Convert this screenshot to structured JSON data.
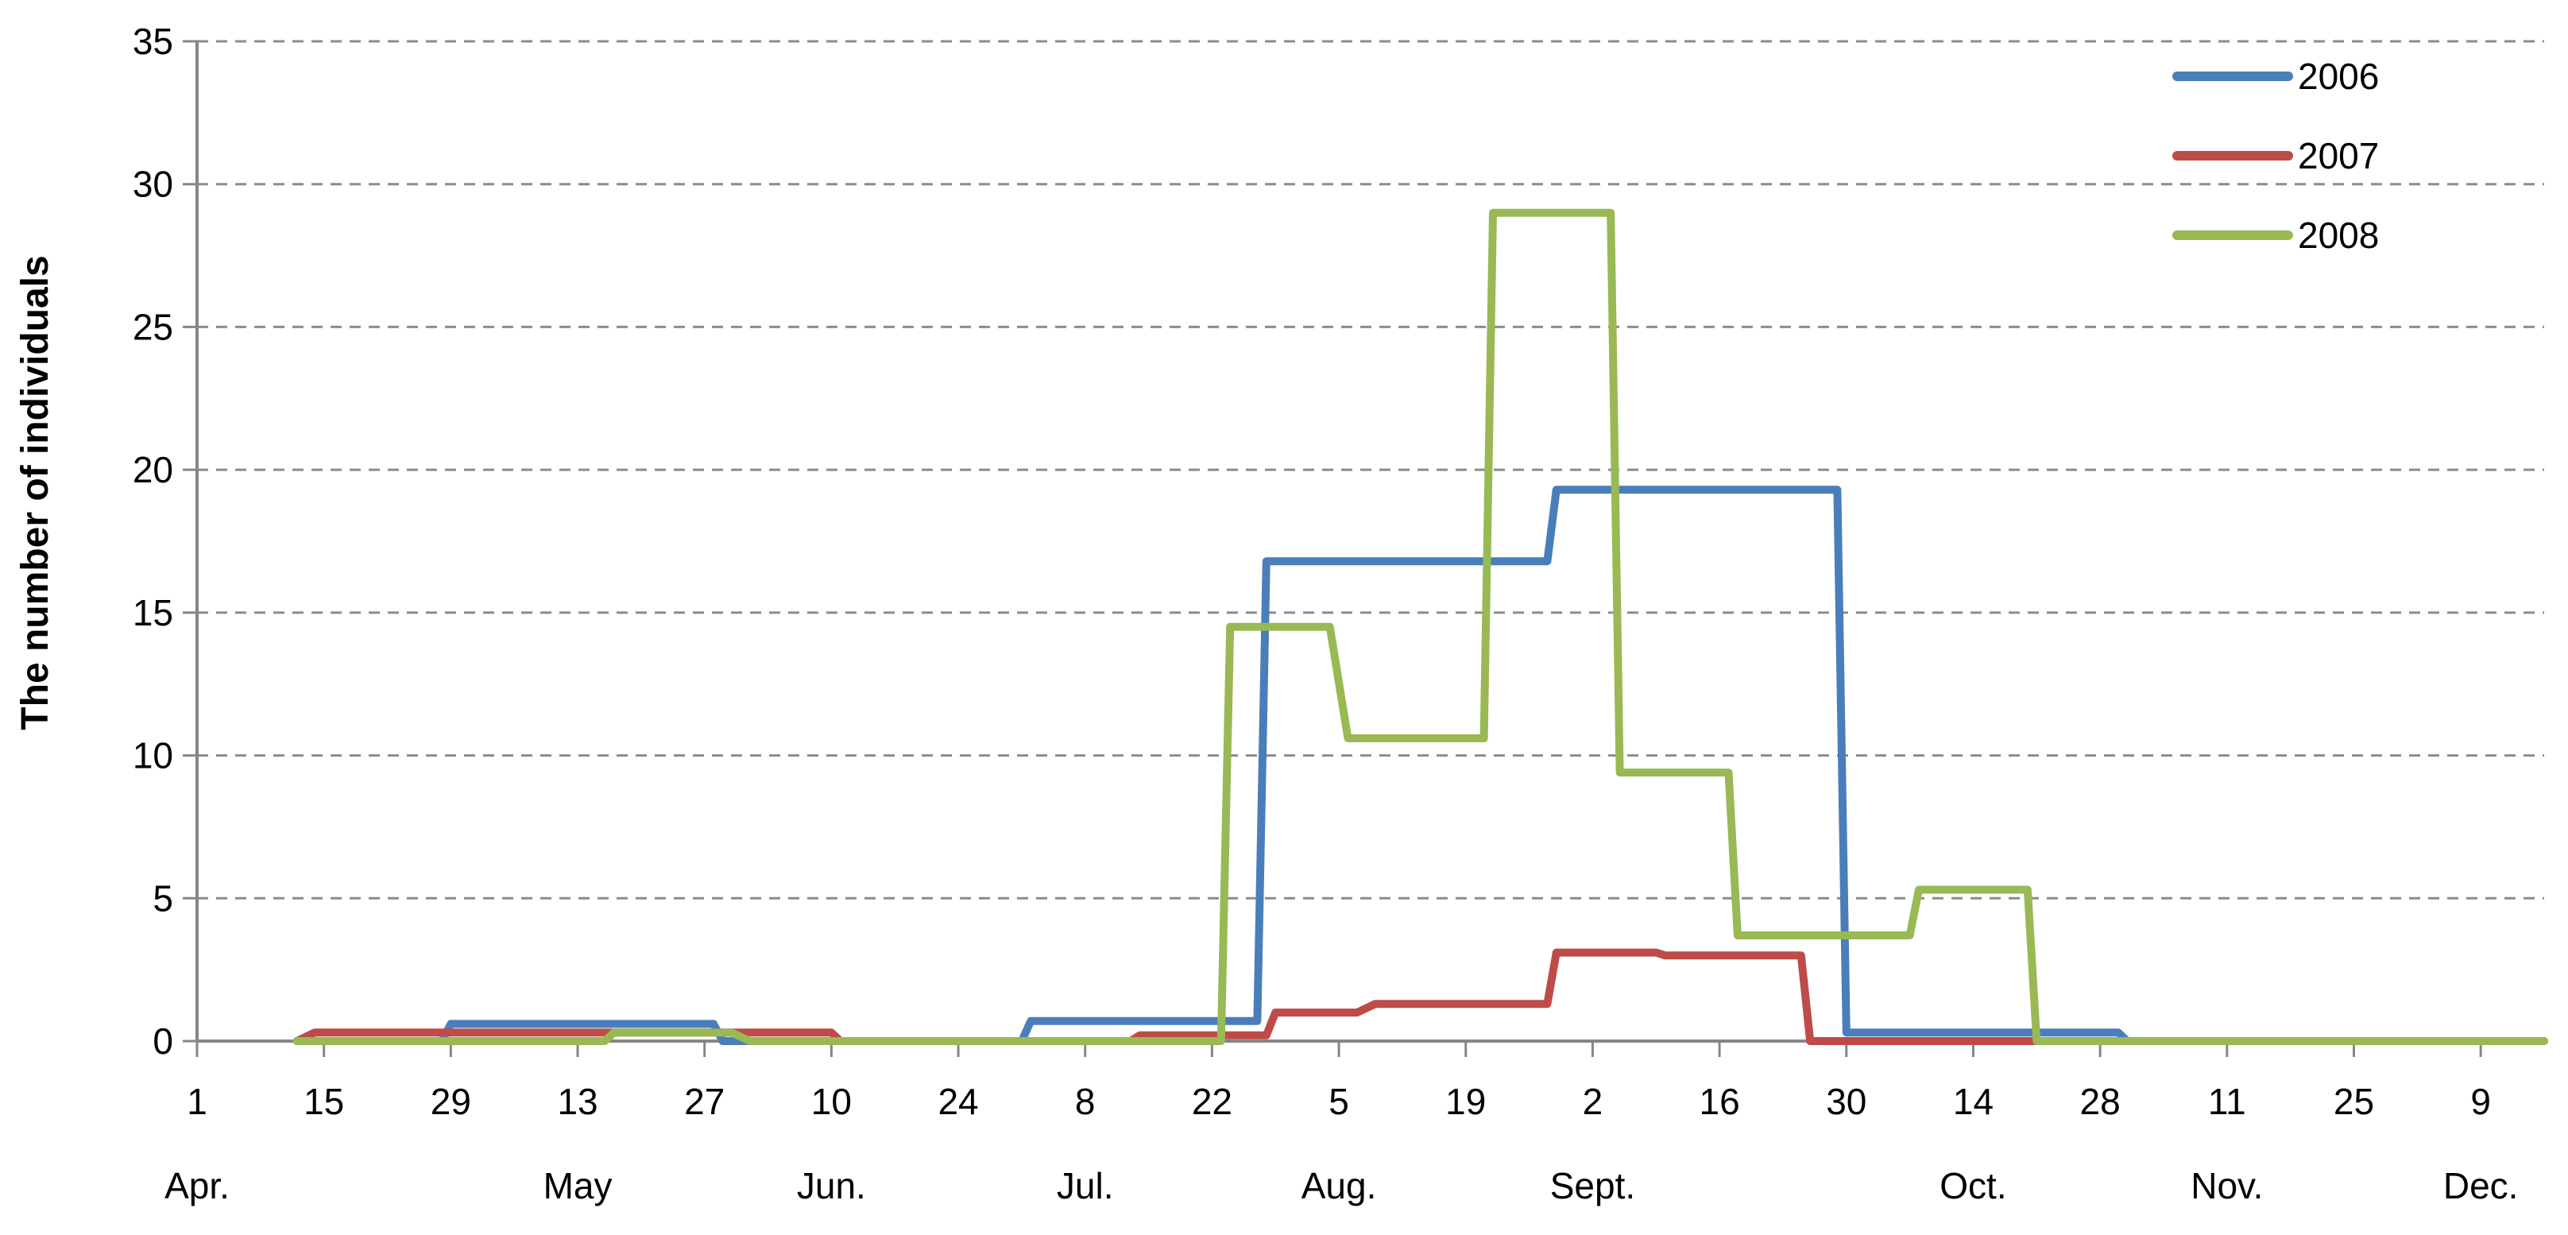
{
  "chart_data": {
    "type": "line",
    "title": "",
    "xlabel": "",
    "ylabel": "The number of individuals",
    "ylim": [
      0,
      35
    ],
    "yticks": [
      0,
      5,
      10,
      15,
      20,
      25,
      30,
      35
    ],
    "y_grid": true,
    "legend_position": "top-right",
    "x_axis": {
      "range": [
        "2006-04-01",
        "2006-12-16"
      ],
      "ticks": [
        {
          "date": "2006-04-01",
          "label": "1"
        },
        {
          "date": "2006-04-15",
          "label": "15"
        },
        {
          "date": "2006-04-29",
          "label": "29"
        },
        {
          "date": "2006-05-13",
          "label": "13"
        },
        {
          "date": "2006-05-27",
          "label": "27"
        },
        {
          "date": "2006-06-10",
          "label": "10"
        },
        {
          "date": "2006-06-24",
          "label": "24"
        },
        {
          "date": "2006-07-08",
          "label": "8"
        },
        {
          "date": "2006-07-22",
          "label": "22"
        },
        {
          "date": "2006-08-05",
          "label": "5"
        },
        {
          "date": "2006-08-19",
          "label": "19"
        },
        {
          "date": "2006-09-02",
          "label": "2"
        },
        {
          "date": "2006-09-16",
          "label": "16"
        },
        {
          "date": "2006-09-30",
          "label": "30"
        },
        {
          "date": "2006-10-14",
          "label": "14"
        },
        {
          "date": "2006-10-28",
          "label": "28"
        },
        {
          "date": "2006-11-11",
          "label": "11"
        },
        {
          "date": "2006-11-25",
          "label": "25"
        },
        {
          "date": "2006-12-09",
          "label": "9"
        }
      ],
      "months": [
        {
          "date": "2006-04-01",
          "label": "Apr."
        },
        {
          "date": "2006-05-13",
          "label": "May"
        },
        {
          "date": "2006-06-10",
          "label": "Jun."
        },
        {
          "date": "2006-07-08",
          "label": "Jul."
        },
        {
          "date": "2006-08-05",
          "label": "Aug."
        },
        {
          "date": "2006-09-02",
          "label": "Sept."
        },
        {
          "date": "2006-10-14",
          "label": "Oct."
        },
        {
          "date": "2006-11-11",
          "label": "Nov."
        },
        {
          "date": "2006-12-09",
          "label": "Dec."
        }
      ]
    },
    "series": [
      {
        "name": "2006",
        "color": "#4a7ebb",
        "points": [
          [
            "2006-04-12",
            0
          ],
          [
            "2006-04-28",
            0
          ],
          [
            "2006-04-29",
            0.6
          ],
          [
            "2006-05-28",
            0.6
          ],
          [
            "2006-05-29",
            0
          ],
          [
            "2006-07-01",
            0
          ],
          [
            "2006-07-02",
            0.7
          ],
          [
            "2006-07-27",
            0.7
          ],
          [
            "2006-07-28",
            16.8
          ],
          [
            "2006-08-28",
            16.8
          ],
          [
            "2006-08-29",
            19.3
          ],
          [
            "2006-09-29",
            19.3
          ],
          [
            "2006-09-30",
            0.3
          ],
          [
            "2006-10-30",
            0.3
          ],
          [
            "2006-10-31",
            0
          ],
          [
            "2006-12-16",
            0
          ]
        ]
      },
      {
        "name": "2007",
        "color": "#be4b48",
        "points": [
          [
            "2006-04-12",
            0
          ],
          [
            "2006-04-14",
            0.3
          ],
          [
            "2006-06-10",
            0.3
          ],
          [
            "2006-06-11",
            0
          ],
          [
            "2006-07-13",
            0
          ],
          [
            "2006-07-14",
            0.2
          ],
          [
            "2006-07-28",
            0.2
          ],
          [
            "2006-07-29",
            1.0
          ],
          [
            "2006-08-07",
            1.0
          ],
          [
            "2006-08-09",
            1.3
          ],
          [
            "2006-08-28",
            1.3
          ],
          [
            "2006-08-29",
            3.1
          ],
          [
            "2006-09-09",
            3.1
          ],
          [
            "2006-09-10",
            3.0
          ],
          [
            "2006-09-25",
            3.0
          ],
          [
            "2006-09-26",
            0
          ],
          [
            "2006-12-16",
            0
          ]
        ]
      },
      {
        "name": "2008",
        "color": "#98b954",
        "points": [
          [
            "2006-04-12",
            0
          ],
          [
            "2006-05-16",
            0
          ],
          [
            "2006-05-17",
            0.3
          ],
          [
            "2006-05-30",
            0.3
          ],
          [
            "2006-06-01",
            0
          ],
          [
            "2006-07-23",
            0
          ],
          [
            "2006-07-24",
            14.5
          ],
          [
            "2006-08-04",
            14.5
          ],
          [
            "2006-08-06",
            10.6
          ],
          [
            "2006-08-21",
            10.6
          ],
          [
            "2006-08-22",
            29.0
          ],
          [
            "2006-09-04",
            29.0
          ],
          [
            "2006-09-05",
            9.4
          ],
          [
            "2006-09-17",
            9.4
          ],
          [
            "2006-09-18",
            3.7
          ],
          [
            "2006-10-07",
            3.7
          ],
          [
            "2006-10-08",
            5.3
          ],
          [
            "2006-10-20",
            5.3
          ],
          [
            "2006-10-21",
            0
          ],
          [
            "2006-12-16",
            0
          ]
        ]
      }
    ]
  }
}
